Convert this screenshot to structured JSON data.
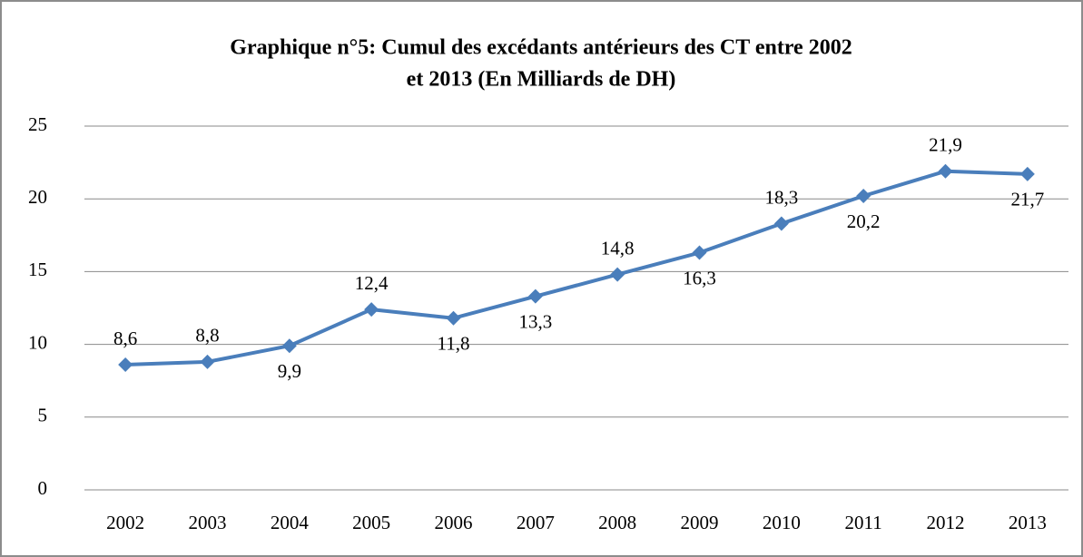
{
  "chart_data": {
    "type": "line",
    "title": [
      "Graphique n°5: Cumul des excédants antérieurs  des CT entre 2002",
      "et 2013 (En Milliards de DH)"
    ],
    "categories": [
      "2002",
      "2003",
      "2004",
      "2005",
      "2006",
      "2007",
      "2008",
      "2009",
      "2010",
      "2011",
      "2012",
      "2013"
    ],
    "values": [
      8.6,
      8.8,
      9.9,
      12.4,
      11.8,
      13.3,
      14.8,
      16.3,
      18.3,
      20.2,
      21.9,
      21.7
    ],
    "value_labels": [
      "8,6",
      "8,8",
      "9,9",
      "12,4",
      "11,8",
      "13,3",
      "14,8",
      "16,3",
      "18,3",
      "20,2",
      "21,9",
      "21,7"
    ],
    "color": "#4a7ebb",
    "ylim": [
      0,
      25
    ],
    "yticks": [
      0,
      5,
      10,
      15,
      20,
      25
    ],
    "grid": true
  }
}
